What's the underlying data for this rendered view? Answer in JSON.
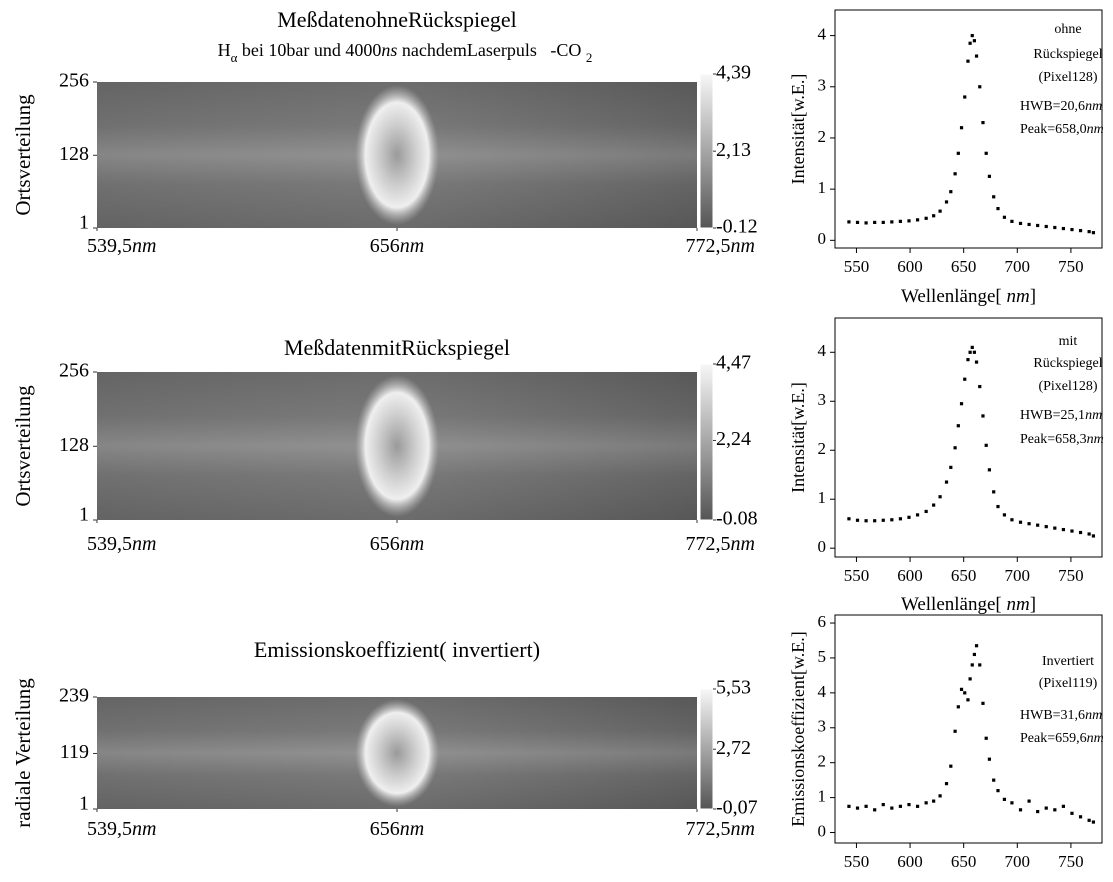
{
  "chart_data": [
    {
      "type": "heatmap",
      "title": "MeßdatenohneRückspiegel",
      "subtitle": [
        "H",
        "α",
        " bei 10bar und 4000",
        "ns",
        " nachdemLaserpuls   -CO ",
        "2"
      ],
      "y_label": "Ortsverteilung",
      "ylim": [
        1,
        256
      ],
      "yticks": [
        1,
        128,
        256
      ],
      "xlim": [
        539.5,
        772.5
      ],
      "xticks": [
        {
          "value": 539.5,
          "label": "539,5"
        },
        656,
        {
          "value": 772.5,
          "label": "772,5"
        }
      ],
      "x_unit": "nm",
      "clim": [
        -0.12,
        4.39
      ],
      "cticks": [
        {
          "value": 4.39,
          "label": "4,39"
        },
        {
          "value": 2.13,
          "label": "2,13"
        },
        {
          "value": -0.12,
          "label": "-0.12"
        }
      ]
    },
    {
      "type": "scatter",
      "y_label": "Intensität[w.E.]",
      "x_label": [
        "Wellenlänge[ ",
        "nm",
        "]"
      ],
      "xlim": [
        530,
        779
      ],
      "xticks": [
        550,
        600,
        650,
        700,
        750
      ],
      "ylim": [
        -0.15,
        4.5
      ],
      "yticks": [
        0,
        1,
        2,
        3,
        4
      ],
      "annotations": [
        "ohne",
        "Rückspiegel",
        "(Pixel128)"
      ],
      "hwb": "HWB=20,6",
      "peak": "Peak=658,0",
      "x_unit": "nm",
      "color": "#000000",
      "x": [
        543,
        551,
        559,
        567,
        575,
        583,
        591,
        599,
        607,
        615,
        622,
        628,
        634,
        638,
        642,
        645,
        648,
        651,
        654,
        656,
        658,
        660,
        662,
        665,
        668,
        671,
        674,
        678,
        682,
        688,
        695,
        703,
        711,
        719,
        727,
        735,
        743,
        751,
        759,
        767,
        771
      ],
      "values": [
        0.36,
        0.35,
        0.34,
        0.35,
        0.35,
        0.36,
        0.37,
        0.38,
        0.4,
        0.43,
        0.48,
        0.57,
        0.75,
        0.95,
        1.3,
        1.7,
        2.2,
        2.8,
        3.5,
        3.85,
        4.0,
        3.9,
        3.6,
        3.0,
        2.3,
        1.7,
        1.25,
        0.85,
        0.62,
        0.45,
        0.37,
        0.33,
        0.31,
        0.29,
        0.27,
        0.25,
        0.23,
        0.21,
        0.19,
        0.17,
        0.15
      ]
    },
    {
      "type": "heatmap",
      "title": "MeßdatenmitRückspiegel",
      "y_label": "Ortsverteilung",
      "ylim": [
        1,
        256
      ],
      "yticks": [
        1,
        128,
        256
      ],
      "xlim": [
        539.5,
        772.5
      ],
      "xticks": [
        {
          "value": 539.5,
          "label": "539,5"
        },
        656,
        {
          "value": 772.5,
          "label": "772,5"
        }
      ],
      "x_unit": "nm",
      "clim": [
        -0.08,
        4.47
      ],
      "cticks": [
        {
          "value": 4.47,
          "label": "4,47"
        },
        {
          "value": 2.24,
          "label": "2,24"
        },
        {
          "value": -0.08,
          "label": "-0.08"
        }
      ]
    },
    {
      "type": "scatter",
      "y_label": "Intensität[w.E.]",
      "x_label": [
        "Wellenlänge[ ",
        "nm",
        "]"
      ],
      "xlim": [
        530,
        779
      ],
      "xticks": [
        550,
        600,
        650,
        700,
        750
      ],
      "ylim": [
        -0.18,
        4.7
      ],
      "yticks": [
        0,
        1,
        2,
        3,
        4
      ],
      "annotations": [
        "mit",
        "Rückspiegel",
        "(Pixel128)"
      ],
      "hwb": "HWB=25,1",
      "peak": "Peak=658,3",
      "x_unit": "nm",
      "color": "#000000",
      "x": [
        543,
        551,
        559,
        567,
        575,
        583,
        591,
        599,
        607,
        615,
        622,
        628,
        634,
        638,
        642,
        645,
        648,
        651,
        654,
        656,
        658,
        660,
        662,
        665,
        668,
        671,
        674,
        678,
        682,
        688,
        695,
        703,
        711,
        719,
        727,
        735,
        743,
        751,
        759,
        767,
        771
      ],
      "values": [
        0.6,
        0.57,
        0.56,
        0.56,
        0.57,
        0.58,
        0.6,
        0.63,
        0.68,
        0.75,
        0.88,
        1.05,
        1.35,
        1.65,
        2.05,
        2.5,
        2.95,
        3.45,
        3.85,
        4.0,
        4.1,
        4.0,
        3.8,
        3.3,
        2.7,
        2.1,
        1.6,
        1.15,
        0.85,
        0.68,
        0.58,
        0.53,
        0.5,
        0.47,
        0.44,
        0.41,
        0.38,
        0.35,
        0.32,
        0.29,
        0.25
      ]
    },
    {
      "type": "heatmap",
      "title": "Emissionskoeffizient( invertiert)",
      "y_label": "radiale Verteilung",
      "ylim": [
        1,
        239
      ],
      "yticks": [
        1,
        119,
        239
      ],
      "xlim": [
        539.5,
        772.5
      ],
      "xticks": [
        {
          "value": 539.5,
          "label": "539,5"
        },
        656,
        {
          "value": 772.5,
          "label": "772,5"
        }
      ],
      "x_unit": "nm",
      "clim": [
        -0.07,
        5.53
      ],
      "cticks": [
        {
          "value": 5.53,
          "label": "5,53"
        },
        {
          "value": 2.72,
          "label": "2,72"
        },
        {
          "value": -0.07,
          "label": "-0,07"
        }
      ]
    },
    {
      "type": "scatter",
      "y_label": "Emissionskoeffizient[w.E.]",
      "xlim": [
        530,
        779
      ],
      "xticks": [
        550,
        600,
        650,
        700,
        750
      ],
      "ylim": [
        -0.3,
        6.23
      ],
      "yticks": [
        0,
        1,
        2,
        3,
        4,
        5,
        6
      ],
      "annotations": [
        "Invertiert",
        "(Pixel119)"
      ],
      "hwb": "HWB=31,6",
      "peak": "Peak=659,6",
      "x_unit": "nm",
      "color": "#000000",
      "x": [
        543,
        551,
        559,
        567,
        575,
        583,
        591,
        599,
        607,
        615,
        622,
        628,
        634,
        638,
        642,
        645,
        648,
        651,
        654,
        656,
        658,
        660,
        662,
        665,
        668,
        671,
        674,
        678,
        682,
        688,
        695,
        703,
        711,
        719,
        727,
        735,
        743,
        751,
        759,
        767,
        771
      ],
      "values": [
        0.75,
        0.7,
        0.75,
        0.65,
        0.8,
        0.7,
        0.75,
        0.8,
        0.75,
        0.85,
        0.9,
        1.05,
        1.4,
        1.9,
        2.9,
        3.6,
        4.1,
        4.0,
        3.8,
        4.4,
        4.8,
        5.1,
        5.35,
        4.8,
        3.7,
        2.7,
        2.1,
        1.5,
        1.2,
        0.95,
        0.85,
        0.65,
        0.9,
        0.6,
        0.7,
        0.65,
        0.75,
        0.55,
        0.45,
        0.35,
        0.3
      ]
    }
  ]
}
